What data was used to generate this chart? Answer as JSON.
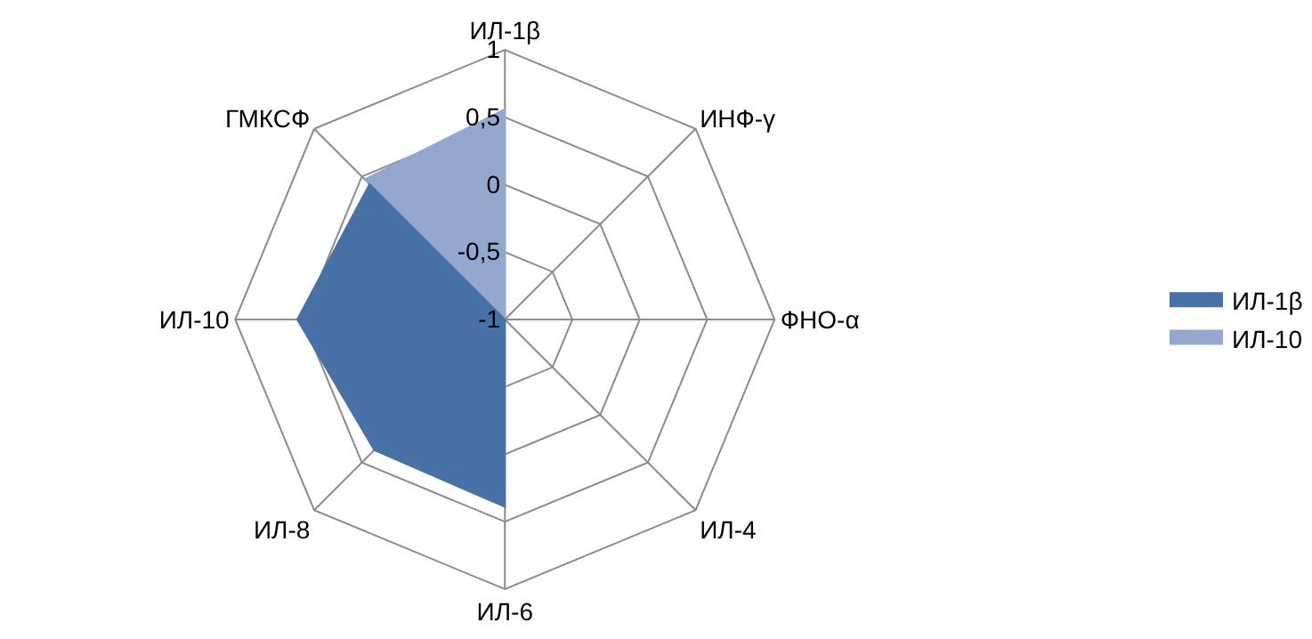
{
  "chart_data": {
    "type": "radar",
    "categories": [
      "ИЛ-1β",
      "ИНФ-γ",
      "ФНО-α",
      "ИЛ-4",
      "ИЛ-6",
      "ИЛ-8",
      "ИЛ-10",
      "ГМКСФ"
    ],
    "series": [
      {
        "name": "ИЛ-1β",
        "color": "#4672a8",
        "values": [
          -1,
          -1,
          -1,
          -1,
          0.39,
          0.37,
          0.54,
          0.42
        ]
      },
      {
        "name": "ИЛ-10",
        "color": "#94a8cf",
        "values": [
          0.56,
          -1,
          -1,
          -1,
          -1,
          -1,
          -1,
          0.47
        ]
      }
    ],
    "ylim": [
      -1,
      1
    ],
    "yticks": [
      -1,
      {
        "value": -0.5,
        "label": "-0,5"
      },
      0,
      {
        "value": 0.5,
        "label": "0,5"
      },
      1
    ],
    "legend": "right",
    "grid": true
  }
}
